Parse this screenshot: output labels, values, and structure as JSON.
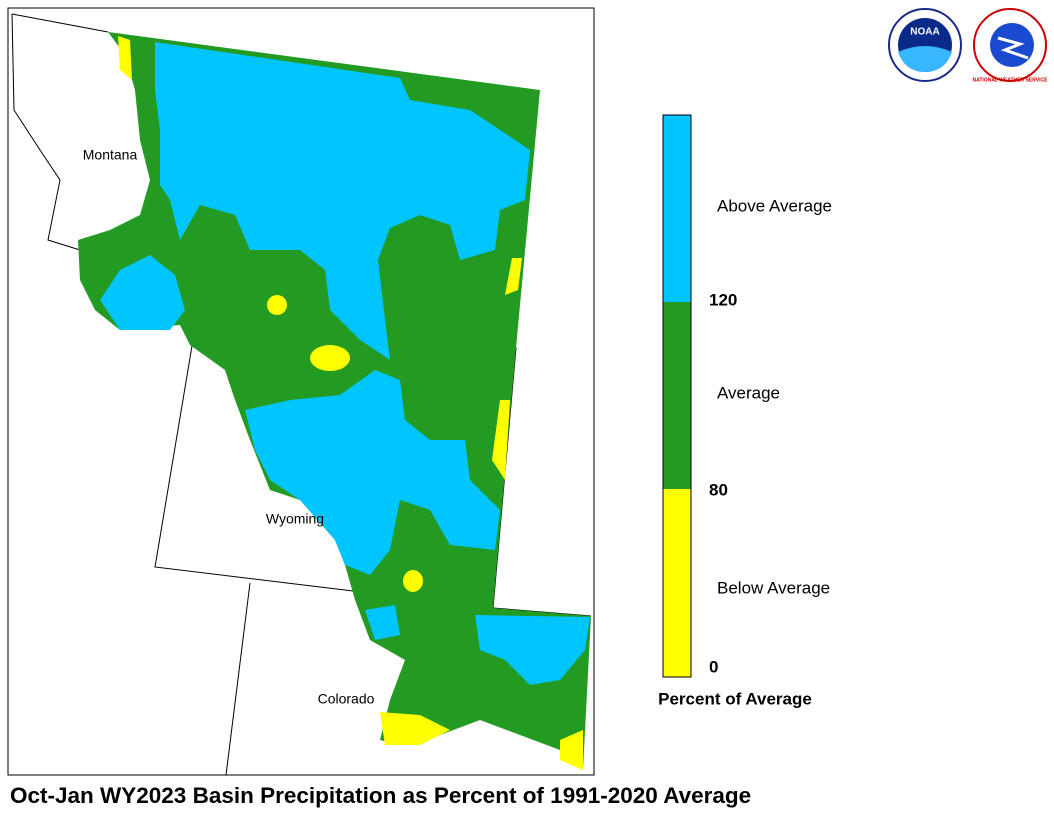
{
  "map": {
    "title": "Oct-Jan WY2023 Basin Precipitation as Percent of 1991-2020 Average",
    "states": [
      "Montana",
      "Wyoming",
      "Colorado"
    ],
    "legend": {
      "title": "Percent of Average",
      "classes": [
        {
          "label": "Above Average",
          "color": "#00c5ff"
        },
        {
          "label": "Average",
          "color": "#239b23"
        },
        {
          "label": "Below Average",
          "color": "#ffff00"
        }
      ],
      "ticks": [
        120,
        80,
        0
      ]
    }
  },
  "logos": [
    "NOAA",
    "NATIONAL WEATHER SERVICE"
  ]
}
